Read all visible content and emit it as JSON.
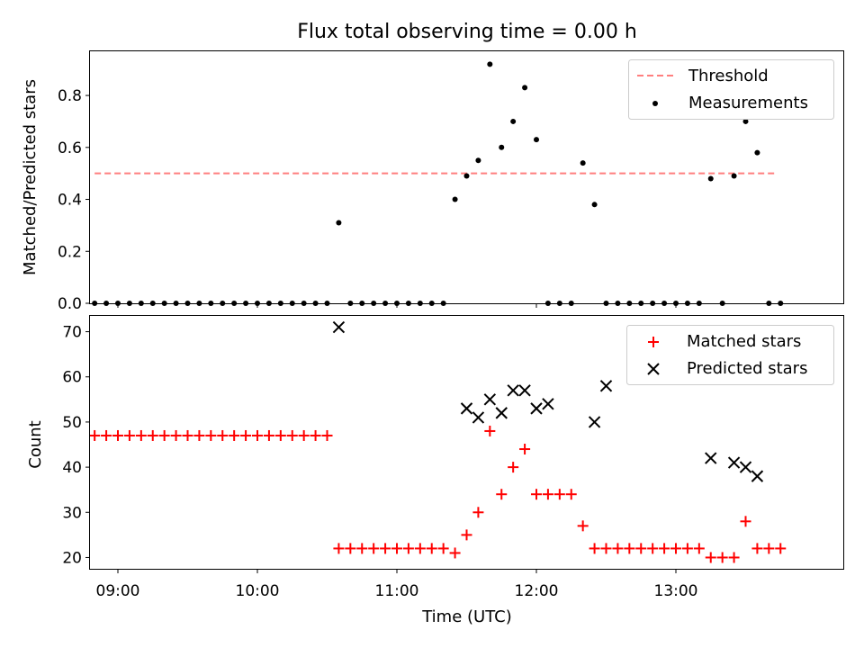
{
  "chart_data": {
    "title": "Flux total observing time = 0.00 h",
    "xlabel": "Time (UTC)",
    "xlim": [
      "08:48",
      "14:12"
    ],
    "x_ticks": [
      "09:00",
      "10:00",
      "11:00",
      "12:00",
      "13:00"
    ],
    "panels": [
      {
        "type": "scatter",
        "ylabel": "Matched/Predicted stars",
        "ylim": [
          0,
          0.97
        ],
        "y_ticks": [
          "0.0",
          "0.2",
          "0.4",
          "0.6",
          "0.8"
        ],
        "legend_position": "upper right",
        "series": [
          {
            "name": "Threshold",
            "style": "dashed line",
            "color": "#ff7f7f",
            "x": [
              "08:50",
              "13:43"
            ],
            "y": [
              0.5,
              0.5
            ]
          },
          {
            "name": "Measurements",
            "style": "dot",
            "color": "#000000",
            "x": [
              "08:50",
              "08:55",
              "09:00",
              "09:05",
              "09:10",
              "09:15",
              "09:20",
              "09:25",
              "09:30",
              "09:35",
              "09:40",
              "09:45",
              "09:50",
              "09:55",
              "10:00",
              "10:05",
              "10:10",
              "10:15",
              "10:20",
              "10:25",
              "10:30",
              "10:35",
              "10:40",
              "10:45",
              "10:50",
              "10:55",
              "11:00",
              "11:05",
              "11:10",
              "11:15",
              "11:20",
              "11:25",
              "11:30",
              "11:35",
              "11:40",
              "11:45",
              "11:50",
              "11:55",
              "12:00",
              "12:05",
              "12:10",
              "12:15",
              "12:20",
              "12:25",
              "12:30",
              "12:35",
              "12:40",
              "12:45",
              "12:50",
              "12:55",
              "13:00",
              "13:05",
              "13:10",
              "13:15",
              "13:20",
              "13:25",
              "13:30",
              "13:35",
              "13:40",
              "13:45"
            ],
            "y": [
              0,
              0,
              0,
              0,
              0,
              0,
              0,
              0,
              0,
              0,
              0,
              0,
              0,
              0,
              0,
              0,
              0,
              0,
              0,
              0,
              0,
              0.31,
              0,
              0,
              0,
              0,
              0,
              0,
              0,
              0,
              0,
              0.4,
              0.49,
              0.55,
              0.92,
              0.6,
              0.7,
              0.83,
              0.63,
              0,
              0,
              0,
              0.54,
              0.38,
              0,
              0,
              0,
              0,
              0,
              0,
              0,
              0,
              0,
              0.48,
              0,
              0.49,
              0.7,
              0.58,
              0,
              0
            ]
          }
        ]
      },
      {
        "type": "scatter",
        "ylabel": "Count",
        "ylim": [
          17.5,
          73.5
        ],
        "y_ticks": [
          "20",
          "30",
          "40",
          "50",
          "60",
          "70"
        ],
        "legend_position": "upper right",
        "series": [
          {
            "name": "Matched stars",
            "style": "plus",
            "color": "#ff0000",
            "x": [
              "08:50",
              "08:55",
              "09:00",
              "09:05",
              "09:10",
              "09:15",
              "09:20",
              "09:25",
              "09:30",
              "09:35",
              "09:40",
              "09:45",
              "09:50",
              "09:55",
              "10:00",
              "10:05",
              "10:10",
              "10:15",
              "10:20",
              "10:25",
              "10:30",
              "10:35",
              "10:40",
              "10:45",
              "10:50",
              "10:55",
              "11:00",
              "11:05",
              "11:10",
              "11:15",
              "11:20",
              "11:25",
              "11:30",
              "11:35",
              "11:40",
              "11:45",
              "11:50",
              "11:55",
              "12:00",
              "12:05",
              "12:10",
              "12:15",
              "12:20",
              "12:25",
              "12:30",
              "12:35",
              "12:40",
              "12:45",
              "12:50",
              "12:55",
              "13:00",
              "13:05",
              "13:10",
              "13:15",
              "13:20",
              "13:25",
              "13:30",
              "13:35",
              "13:40",
              "13:45"
            ],
            "y": [
              47,
              47,
              47,
              47,
              47,
              47,
              47,
              47,
              47,
              47,
              47,
              47,
              47,
              47,
              47,
              47,
              47,
              47,
              47,
              47,
              47,
              22,
              22,
              22,
              22,
              22,
              22,
              22,
              22,
              22,
              22,
              21,
              25,
              30,
              48,
              34,
              40,
              44,
              34,
              34,
              34,
              34,
              27,
              22,
              22,
              22,
              22,
              22,
              22,
              22,
              22,
              22,
              22,
              20,
              20,
              20,
              28,
              22,
              22,
              22
            ]
          },
          {
            "name": "Predicted stars",
            "style": "x",
            "color": "#000000",
            "x": [
              "10:35",
              "11:30",
              "11:35",
              "11:40",
              "11:45",
              "11:50",
              "11:55",
              "12:00",
              "12:05",
              "12:25",
              "12:30",
              "13:15",
              "13:25",
              "13:30",
              "13:35"
            ],
            "y": [
              71,
              53,
              51,
              55,
              52,
              57,
              57,
              53,
              54,
              50,
              58,
              42,
              41,
              40,
              38
            ]
          }
        ]
      }
    ]
  }
}
